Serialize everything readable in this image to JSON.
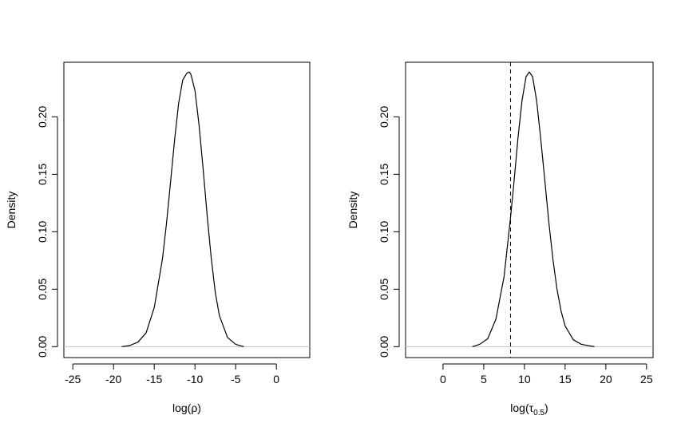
{
  "chart_data": [
    {
      "type": "line",
      "title": "",
      "xlabel": "log(ρ)",
      "ylabel": "Density",
      "xlim": [
        -26.1,
        4.1
      ],
      "ylim": [
        -0.0095,
        0.2475
      ],
      "xticks": [
        -25,
        -20,
        -15,
        -10,
        -5,
        0
      ],
      "xtick_labels": [
        "-25",
        "-20",
        "-15",
        "-10",
        "-5",
        "0"
      ],
      "yticks": [
        0,
        0.05,
        0.1,
        0.15,
        0.2
      ],
      "ytick_labels": [
        "0.00",
        "0.05",
        "0.10",
        "0.15",
        "0.20"
      ],
      "grid": false,
      "baseline": {
        "y": 0,
        "color": "#c0c0c0"
      },
      "series": [
        {
          "color": "#000000",
          "x": [
            -19.0,
            -18.0,
            -17.0,
            -16.0,
            -15.0,
            -14.0,
            -13.5,
            -13.0,
            -12.5,
            -12.0,
            -11.5,
            -11.0,
            -10.7,
            -10.5,
            -10.0,
            -9.5,
            -9.0,
            -8.5,
            -8.0,
            -7.5,
            -7.0,
            -6.0,
            -5.0,
            -4.0
          ],
          "y": [
            0.0,
            0.001,
            0.004,
            0.012,
            0.034,
            0.076,
            0.107,
            0.143,
            0.18,
            0.212,
            0.232,
            0.238,
            0.239,
            0.237,
            0.223,
            0.193,
            0.155,
            0.114,
            0.077,
            0.047,
            0.027,
            0.008,
            0.002,
            0.0
          ]
        }
      ]
    },
    {
      "type": "line",
      "title": "",
      "xlabel_prefix": "log(τ",
      "xlabel_sub": "0.5",
      "xlabel_suffix": ")",
      "ylabel": "Density",
      "xlim": [
        -4.6,
        25.8
      ],
      "ylim": [
        -0.0095,
        0.2475
      ],
      "xticks": [
        0,
        5,
        10,
        15,
        20,
        25
      ],
      "xtick_labels": [
        "0",
        "5",
        "10",
        "15",
        "20",
        "25"
      ],
      "yticks": [
        0,
        0.05,
        0.1,
        0.15,
        0.2
      ],
      "ytick_labels": [
        "0.00",
        "0.05",
        "0.10",
        "0.15",
        "0.20"
      ],
      "grid": false,
      "baseline": {
        "y": 0,
        "color": "#c0c0c0"
      },
      "vline": {
        "x": 8.3,
        "style": "dashed"
      },
      "series": [
        {
          "color": "#000000",
          "x": [
            3.6,
            4.5,
            5.5,
            6.5,
            7.5,
            8.3,
            8.7,
            9.2,
            9.7,
            10.2,
            10.6,
            11.0,
            11.5,
            12.0,
            12.5,
            13.0,
            13.5,
            14.0,
            14.5,
            15.0,
            16.0,
            17.0,
            18.6
          ],
          "y": [
            0.0,
            0.002,
            0.007,
            0.024,
            0.061,
            0.113,
            0.142,
            0.181,
            0.214,
            0.235,
            0.239,
            0.235,
            0.214,
            0.181,
            0.145,
            0.108,
            0.076,
            0.05,
            0.031,
            0.018,
            0.006,
            0.002,
            0.0
          ]
        }
      ]
    }
  ]
}
